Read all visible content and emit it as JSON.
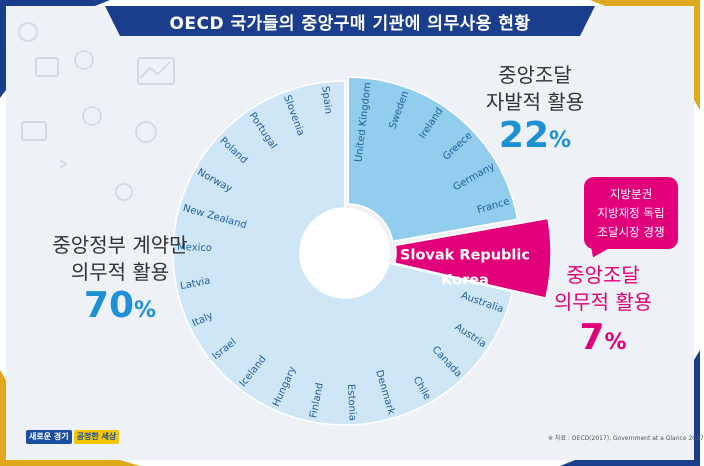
{
  "title": "OECD 국가들의 중앙구매 기관에 의무사용 현황",
  "colors": {
    "navy": "#1a3e8c",
    "gold": "#e0a81c",
    "light_blue": "#cfe6f7",
    "mid_blue": "#92cdee",
    "magenta": "#e2007a",
    "accent_blue": "#1e90d6"
  },
  "groups": {
    "mandatory": {
      "line1": "중앙정부 계약만",
      "line2": "의무적 활용",
      "value": "70",
      "unit": "%"
    },
    "voluntary": {
      "line1": "중앙조달",
      "line2": "자발적 활용",
      "value": "22",
      "unit": "%"
    },
    "mandatory_all": {
      "line1": "중앙조달",
      "line2": "의무적 활용",
      "value": "7",
      "unit": "%"
    }
  },
  "note": {
    "line1": "지방분권",
    "line2": "지방재정 독립",
    "line3": "조달시장 경쟁"
  },
  "source": "※ 자료 : OECD(2017), Government at a Glance 2017",
  "logo": {
    "part1": "새로운 경기",
    "part2": "공정한 세상"
  },
  "chart_data": {
    "type": "pie",
    "subtype": "exploded-donut",
    "title": "OECD 국가들의 중앙구매 기관에 의무사용 현황",
    "segments": [
      {
        "key": "voluntary",
        "label": "중앙조달 자발적 활용",
        "value": 22,
        "countries": [
          "United Kingdom",
          "Sweden",
          "Ireland",
          "Greece",
          "Germany",
          "France"
        ]
      },
      {
        "key": "mandatory_all",
        "label": "중앙조달 의무적 활용",
        "value": 7,
        "countries": [
          "Slovak Republic",
          "Korea"
        ]
      },
      {
        "key": "mandatory",
        "label": "중앙정부 계약만 의무적 활용",
        "value": 70,
        "countries": [
          "Australia",
          "Austria",
          "Canada",
          "Chile",
          "Denmark",
          "Estonia",
          "Finland",
          "Hungary",
          "Iceland",
          "Israel",
          "Italy",
          "Latvia",
          "Mexico",
          "New Zealand",
          "Norway",
          "Poland",
          "Portugal",
          "Slovenia",
          "Spain"
        ]
      }
    ]
  }
}
